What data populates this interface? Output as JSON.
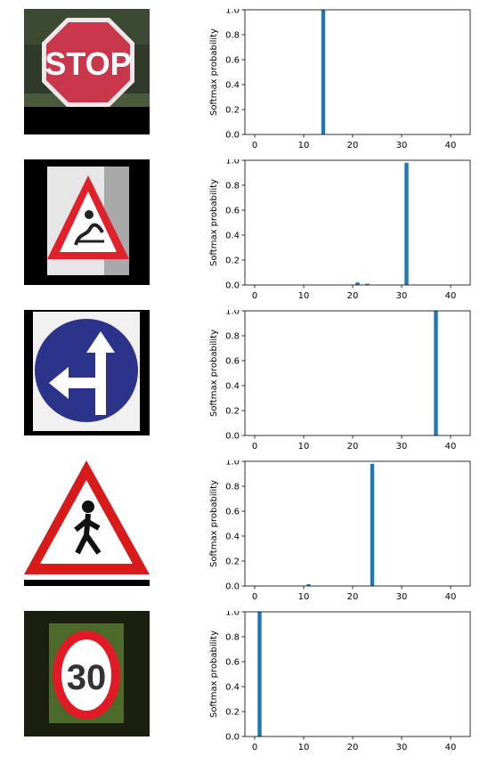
{
  "signs": [
    {
      "icon": "stop-sign-icon",
      "text": "STOP",
      "bg": "#2f3a2a",
      "fill": "#c8374b",
      "text_color": "#ffffff"
    },
    {
      "icon": "slippery-road-sign-icon",
      "text": "",
      "bg": "#000000",
      "fill": "#ffffff",
      "stroke": "#e0202a"
    },
    {
      "icon": "go-straight-or-left-sign-icon",
      "text": "",
      "bg": "#000000",
      "fill": "#2c338a",
      "stroke": "#ffffff"
    },
    {
      "icon": "pedestrian-crossing-sign-icon",
      "text": "",
      "bg": "#ffffff",
      "fill": "#ffffff",
      "stroke": "#d81a1a"
    },
    {
      "icon": "speed-limit-30-sign-icon",
      "text": "30",
      "bg": "#1a1f10",
      "fill": "#ffffff",
      "stroke": "#e21a26",
      "text_color": "#333333"
    }
  ],
  "chart_data": [
    {
      "type": "bar",
      "ylabel": "Softmax probability",
      "xlim": [
        -2,
        44
      ],
      "ylim": [
        0,
        1.0
      ],
      "x_ticks": [
        0,
        10,
        20,
        30,
        40
      ],
      "y_ticks": [
        0.0,
        0.2,
        0.4,
        0.6,
        0.8,
        1.0
      ],
      "x": [
        14
      ],
      "values": [
        1.0
      ]
    },
    {
      "type": "bar",
      "ylabel": "Softmax probability",
      "xlim": [
        -2,
        44
      ],
      "ylim": [
        0,
        1.0
      ],
      "x_ticks": [
        0,
        10,
        20,
        30,
        40
      ],
      "y_ticks": [
        0.0,
        0.2,
        0.4,
        0.6,
        0.8,
        1.0
      ],
      "x": [
        21,
        23,
        31
      ],
      "values": [
        0.02,
        0.01,
        0.98
      ]
    },
    {
      "type": "bar",
      "ylabel": "Softmax probability",
      "xlim": [
        -2,
        44
      ],
      "ylim": [
        0,
        1.0
      ],
      "x_ticks": [
        0,
        10,
        20,
        30,
        40
      ],
      "y_ticks": [
        0.0,
        0.2,
        0.4,
        0.6,
        0.8,
        1.0
      ],
      "x": [
        37
      ],
      "values": [
        1.0
      ]
    },
    {
      "type": "bar",
      "ylabel": "Softmax probability",
      "xlim": [
        -2,
        44
      ],
      "ylim": [
        0,
        1.0
      ],
      "x_ticks": [
        0,
        10,
        20,
        30,
        40
      ],
      "y_ticks": [
        0.0,
        0.2,
        0.4,
        0.6,
        0.8,
        1.0
      ],
      "x": [
        11,
        24
      ],
      "values": [
        0.015,
        0.98
      ]
    },
    {
      "type": "bar",
      "ylabel": "Softmax probability",
      "xlim": [
        -2,
        44
      ],
      "ylim": [
        0,
        1.0
      ],
      "x_ticks": [
        0,
        10,
        20,
        30,
        40
      ],
      "y_ticks": [
        0.0,
        0.2,
        0.4,
        0.6,
        0.8,
        1.0
      ],
      "x": [
        1
      ],
      "values": [
        1.0
      ]
    }
  ],
  "colors": {
    "bar": "#1f77b4",
    "axis": "#000000",
    "text": "#000000"
  }
}
